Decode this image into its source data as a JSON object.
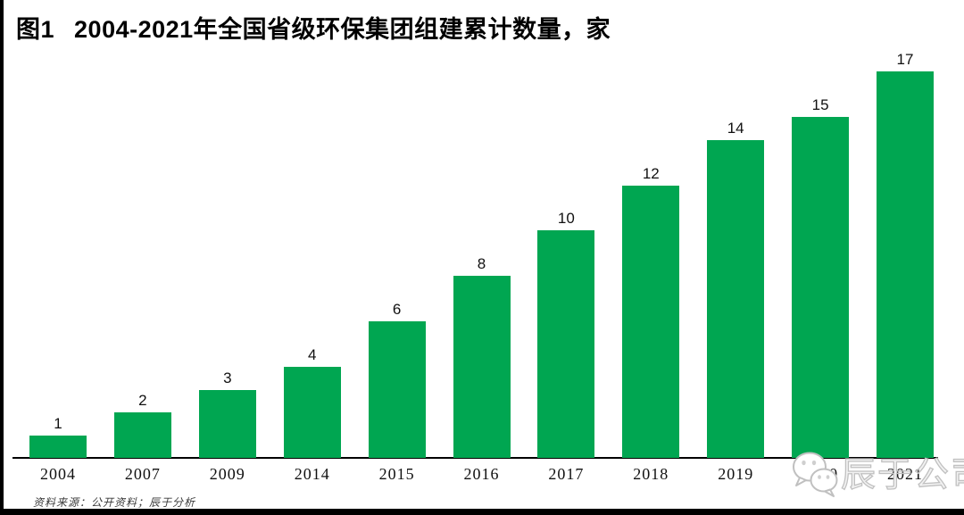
{
  "header": {
    "figure_label": "图1",
    "title": "2004-2021年全国省级环保集团组建累计数量，家"
  },
  "chart_data": {
    "type": "bar",
    "title": "图1 2004-2021年全国省级环保集团组建累计数量，家",
    "categories": [
      "2004",
      "2007",
      "2009",
      "2014",
      "2015",
      "2016",
      "2017",
      "2018",
      "2019",
      "2020",
      "2021"
    ],
    "values": [
      1,
      2,
      3,
      4,
      6,
      8,
      10,
      12,
      14,
      15,
      17
    ],
    "xlabel": "",
    "ylabel": "",
    "ylim": [
      0,
      17
    ],
    "grid": false,
    "legend_position": "none",
    "data_labels": true,
    "bar_color": "#00a651"
  },
  "footer": {
    "source_note": "资料来源：公开资料；辰于分析"
  },
  "watermark": {
    "icon": "wechat-icon",
    "text": "辰于公司",
    "color": "#c0c0c0"
  },
  "colors": {
    "bar_green": "#00a651",
    "axis_black": "#000000",
    "text_black": "#111111"
  }
}
